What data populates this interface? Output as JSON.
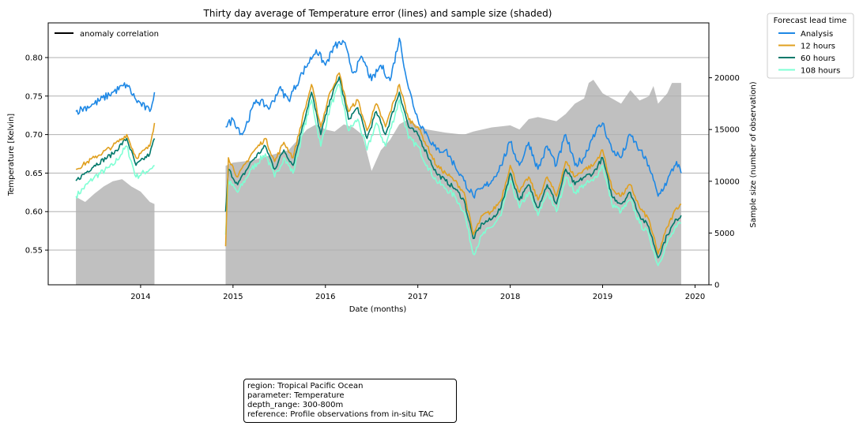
{
  "chart_data": {
    "type": "line",
    "title": "Thirty day average of Temperature error (lines) and sample size (shaded)",
    "xlabel": "Date (months)",
    "ylabel": "Temperature [Kelvin]",
    "y2label": "Sample size (number of observation)",
    "x_ticks": [
      "2014",
      "2015",
      "2016",
      "2017",
      "2018",
      "2019",
      "2020"
    ],
    "y_ticks": [
      "0.55",
      "0.60",
      "0.65",
      "0.70",
      "0.75",
      "0.80"
    ],
    "y2_ticks": [
      "0",
      "5000",
      "10000",
      "15000",
      "20000"
    ],
    "xlim": [
      2013.0,
      2020.15
    ],
    "ylim": [
      0.505,
      0.845
    ],
    "y2lim": [
      0,
      25300
    ],
    "grid": "horizontal",
    "gap": [
      2014.16,
      2014.9
    ],
    "series": [
      {
        "name": "Analysis",
        "color": "#1e88e5",
        "points": [
          [
            2013.3,
            0.73
          ],
          [
            2013.5,
            0.74
          ],
          [
            2013.7,
            0.755
          ],
          [
            2013.85,
            0.765
          ],
          [
            2013.95,
            0.745
          ],
          [
            2014.1,
            0.73
          ],
          [
            2014.15,
            0.755
          ],
          [
            2014.92,
            0.71
          ],
          [
            2015.0,
            0.72
          ],
          [
            2015.1,
            0.7
          ],
          [
            2015.25,
            0.745
          ],
          [
            2015.4,
            0.735
          ],
          [
            2015.5,
            0.76
          ],
          [
            2015.6,
            0.745
          ],
          [
            2015.75,
            0.78
          ],
          [
            2015.9,
            0.81
          ],
          [
            2016.0,
            0.79
          ],
          [
            2016.1,
            0.815
          ],
          [
            2016.2,
            0.82
          ],
          [
            2016.3,
            0.78
          ],
          [
            2016.4,
            0.8
          ],
          [
            2016.5,
            0.77
          ],
          [
            2016.6,
            0.79
          ],
          [
            2016.7,
            0.77
          ],
          [
            2016.8,
            0.825
          ],
          [
            2016.9,
            0.76
          ],
          [
            2017.0,
            0.72
          ],
          [
            2017.1,
            0.7
          ],
          [
            2017.2,
            0.68
          ],
          [
            2017.3,
            0.68
          ],
          [
            2017.4,
            0.66
          ],
          [
            2017.5,
            0.64
          ],
          [
            2017.6,
            0.62
          ],
          [
            2017.7,
            0.63
          ],
          [
            2017.8,
            0.64
          ],
          [
            2017.9,
            0.66
          ],
          [
            2018.0,
            0.69
          ],
          [
            2018.1,
            0.66
          ],
          [
            2018.2,
            0.69
          ],
          [
            2018.3,
            0.655
          ],
          [
            2018.4,
            0.685
          ],
          [
            2018.5,
            0.66
          ],
          [
            2018.6,
            0.7
          ],
          [
            2018.7,
            0.66
          ],
          [
            2018.8,
            0.67
          ],
          [
            2018.9,
            0.7
          ],
          [
            2019.0,
            0.715
          ],
          [
            2019.1,
            0.68
          ],
          [
            2019.2,
            0.67
          ],
          [
            2019.3,
            0.7
          ],
          [
            2019.4,
            0.68
          ],
          [
            2019.5,
            0.66
          ],
          [
            2019.6,
            0.62
          ],
          [
            2019.7,
            0.64
          ],
          [
            2019.8,
            0.665
          ],
          [
            2019.85,
            0.65
          ]
        ]
      },
      {
        "name": "12 hours",
        "color": "#e0a020",
        "points": [
          [
            2013.3,
            0.655
          ],
          [
            2013.5,
            0.67
          ],
          [
            2013.7,
            0.685
          ],
          [
            2013.85,
            0.7
          ],
          [
            2013.95,
            0.67
          ],
          [
            2014.1,
            0.685
          ],
          [
            2014.15,
            0.715
          ],
          [
            2014.92,
            0.555
          ],
          [
            2014.95,
            0.67
          ],
          [
            2015.05,
            0.645
          ],
          [
            2015.2,
            0.675
          ],
          [
            2015.35,
            0.695
          ],
          [
            2015.45,
            0.665
          ],
          [
            2015.55,
            0.69
          ],
          [
            2015.65,
            0.67
          ],
          [
            2015.75,
            0.72
          ],
          [
            2015.85,
            0.765
          ],
          [
            2015.95,
            0.71
          ],
          [
            2016.05,
            0.755
          ],
          [
            2016.15,
            0.78
          ],
          [
            2016.25,
            0.73
          ],
          [
            2016.35,
            0.745
          ],
          [
            2016.45,
            0.705
          ],
          [
            2016.55,
            0.74
          ],
          [
            2016.65,
            0.71
          ],
          [
            2016.8,
            0.765
          ],
          [
            2016.9,
            0.72
          ],
          [
            2017.0,
            0.71
          ],
          [
            2017.1,
            0.685
          ],
          [
            2017.2,
            0.66
          ],
          [
            2017.3,
            0.65
          ],
          [
            2017.4,
            0.64
          ],
          [
            2017.5,
            0.625
          ],
          [
            2017.6,
            0.57
          ],
          [
            2017.7,
            0.595
          ],
          [
            2017.8,
            0.6
          ],
          [
            2017.9,
            0.615
          ],
          [
            2018.0,
            0.66
          ],
          [
            2018.1,
            0.625
          ],
          [
            2018.2,
            0.645
          ],
          [
            2018.3,
            0.615
          ],
          [
            2018.4,
            0.645
          ],
          [
            2018.5,
            0.62
          ],
          [
            2018.6,
            0.665
          ],
          [
            2018.7,
            0.645
          ],
          [
            2018.8,
            0.655
          ],
          [
            2018.9,
            0.66
          ],
          [
            2019.0,
            0.68
          ],
          [
            2019.1,
            0.63
          ],
          [
            2019.2,
            0.62
          ],
          [
            2019.3,
            0.635
          ],
          [
            2019.4,
            0.605
          ],
          [
            2019.5,
            0.59
          ],
          [
            2019.6,
            0.545
          ],
          [
            2019.7,
            0.58
          ],
          [
            2019.8,
            0.605
          ],
          [
            2019.85,
            0.61
          ]
        ]
      },
      {
        "name": "60 hours",
        "color": "#00796b",
        "points": [
          [
            2013.3,
            0.64
          ],
          [
            2013.5,
            0.66
          ],
          [
            2013.7,
            0.675
          ],
          [
            2013.85,
            0.695
          ],
          [
            2013.95,
            0.66
          ],
          [
            2014.1,
            0.675
          ],
          [
            2014.15,
            0.695
          ],
          [
            2014.92,
            0.6
          ],
          [
            2014.95,
            0.655
          ],
          [
            2015.05,
            0.635
          ],
          [
            2015.2,
            0.665
          ],
          [
            2015.35,
            0.685
          ],
          [
            2015.45,
            0.655
          ],
          [
            2015.55,
            0.68
          ],
          [
            2015.65,
            0.66
          ],
          [
            2015.75,
            0.71
          ],
          [
            2015.85,
            0.755
          ],
          [
            2015.95,
            0.7
          ],
          [
            2016.05,
            0.745
          ],
          [
            2016.15,
            0.775
          ],
          [
            2016.25,
            0.72
          ],
          [
            2016.35,
            0.735
          ],
          [
            2016.45,
            0.695
          ],
          [
            2016.55,
            0.73
          ],
          [
            2016.65,
            0.7
          ],
          [
            2016.8,
            0.755
          ],
          [
            2016.9,
            0.71
          ],
          [
            2017.0,
            0.7
          ],
          [
            2017.1,
            0.675
          ],
          [
            2017.2,
            0.65
          ],
          [
            2017.3,
            0.64
          ],
          [
            2017.4,
            0.63
          ],
          [
            2017.5,
            0.615
          ],
          [
            2017.6,
            0.565
          ],
          [
            2017.7,
            0.585
          ],
          [
            2017.8,
            0.59
          ],
          [
            2017.9,
            0.605
          ],
          [
            2018.0,
            0.65
          ],
          [
            2018.1,
            0.615
          ],
          [
            2018.2,
            0.635
          ],
          [
            2018.3,
            0.605
          ],
          [
            2018.4,
            0.635
          ],
          [
            2018.5,
            0.61
          ],
          [
            2018.6,
            0.655
          ],
          [
            2018.7,
            0.635
          ],
          [
            2018.8,
            0.645
          ],
          [
            2018.9,
            0.65
          ],
          [
            2019.0,
            0.67
          ],
          [
            2019.1,
            0.62
          ],
          [
            2019.2,
            0.61
          ],
          [
            2019.3,
            0.625
          ],
          [
            2019.4,
            0.595
          ],
          [
            2019.5,
            0.58
          ],
          [
            2019.6,
            0.54
          ],
          [
            2019.7,
            0.57
          ],
          [
            2019.8,
            0.59
          ],
          [
            2019.85,
            0.595
          ]
        ]
      },
      {
        "name": "108 hours",
        "color": "#7fffd4",
        "points": [
          [
            2013.3,
            0.62
          ],
          [
            2013.5,
            0.645
          ],
          [
            2013.7,
            0.66
          ],
          [
            2013.85,
            0.685
          ],
          [
            2013.95,
            0.645
          ],
          [
            2014.1,
            0.655
          ],
          [
            2014.15,
            0.66
          ],
          [
            2014.92,
            0.57
          ],
          [
            2014.95,
            0.64
          ],
          [
            2015.05,
            0.625
          ],
          [
            2015.2,
            0.655
          ],
          [
            2015.35,
            0.675
          ],
          [
            2015.45,
            0.645
          ],
          [
            2015.55,
            0.67
          ],
          [
            2015.65,
            0.65
          ],
          [
            2015.75,
            0.7
          ],
          [
            2015.85,
            0.745
          ],
          [
            2015.95,
            0.685
          ],
          [
            2016.05,
            0.735
          ],
          [
            2016.15,
            0.765
          ],
          [
            2016.25,
            0.705
          ],
          [
            2016.35,
            0.72
          ],
          [
            2016.45,
            0.68
          ],
          [
            2016.55,
            0.715
          ],
          [
            2016.65,
            0.685
          ],
          [
            2016.8,
            0.745
          ],
          [
            2016.9,
            0.695
          ],
          [
            2017.0,
            0.685
          ],
          [
            2017.1,
            0.66
          ],
          [
            2017.2,
            0.64
          ],
          [
            2017.3,
            0.63
          ],
          [
            2017.4,
            0.62
          ],
          [
            2017.5,
            0.6
          ],
          [
            2017.6,
            0.545
          ],
          [
            2017.7,
            0.57
          ],
          [
            2017.8,
            0.58
          ],
          [
            2017.9,
            0.595
          ],
          [
            2018.0,
            0.64
          ],
          [
            2018.1,
            0.605
          ],
          [
            2018.2,
            0.625
          ],
          [
            2018.3,
            0.595
          ],
          [
            2018.4,
            0.625
          ],
          [
            2018.5,
            0.6
          ],
          [
            2018.6,
            0.645
          ],
          [
            2018.7,
            0.625
          ],
          [
            2018.8,
            0.635
          ],
          [
            2018.9,
            0.64
          ],
          [
            2019.0,
            0.66
          ],
          [
            2019.1,
            0.61
          ],
          [
            2019.2,
            0.6
          ],
          [
            2019.3,
            0.615
          ],
          [
            2019.4,
            0.585
          ],
          [
            2019.5,
            0.57
          ],
          [
            2019.6,
            0.53
          ],
          [
            2019.7,
            0.56
          ],
          [
            2019.8,
            0.58
          ],
          [
            2019.85,
            0.585
          ]
        ]
      }
    ],
    "sample_size": {
      "color": "#c0c0c0",
      "points": [
        [
          2013.3,
          8500
        ],
        [
          2013.4,
          8000
        ],
        [
          2013.5,
          8800
        ],
        [
          2013.6,
          9500
        ],
        [
          2013.7,
          10000
        ],
        [
          2013.8,
          10200
        ],
        [
          2013.9,
          9500
        ],
        [
          2014.0,
          9000
        ],
        [
          2014.1,
          8000
        ],
        [
          2014.15,
          7800
        ],
        [
          2014.92,
          11500
        ],
        [
          2015.0,
          11800
        ],
        [
          2015.2,
          12000
        ],
        [
          2015.4,
          12500
        ],
        [
          2015.6,
          13000
        ],
        [
          2015.8,
          15000
        ],
        [
          2015.9,
          15500
        ],
        [
          2016.0,
          15000
        ],
        [
          2016.1,
          14800
        ],
        [
          2016.2,
          15500
        ],
        [
          2016.3,
          15200
        ],
        [
          2016.4,
          14500
        ],
        [
          2016.5,
          11000
        ],
        [
          2016.6,
          13000
        ],
        [
          2016.7,
          14000
        ],
        [
          2016.8,
          15500
        ],
        [
          2016.9,
          16000
        ],
        [
          2017.0,
          15300
        ],
        [
          2017.1,
          15000
        ],
        [
          2017.3,
          14700
        ],
        [
          2017.5,
          14500
        ],
        [
          2017.6,
          14800
        ],
        [
          2017.8,
          15200
        ],
        [
          2018.0,
          15400
        ],
        [
          2018.1,
          15000
        ],
        [
          2018.2,
          16000
        ],
        [
          2018.3,
          16200
        ],
        [
          2018.5,
          15800
        ],
        [
          2018.6,
          16500
        ],
        [
          2018.7,
          17500
        ],
        [
          2018.8,
          18000
        ],
        [
          2018.85,
          19500
        ],
        [
          2018.9,
          19800
        ],
        [
          2019.0,
          18500
        ],
        [
          2019.1,
          18000
        ],
        [
          2019.2,
          17500
        ],
        [
          2019.3,
          18800
        ],
        [
          2019.4,
          17800
        ],
        [
          2019.5,
          18200
        ],
        [
          2019.55,
          19200
        ],
        [
          2019.6,
          17500
        ],
        [
          2019.7,
          18500
        ],
        [
          2019.75,
          19500
        ],
        [
          2019.85,
          19500
        ]
      ]
    },
    "legend": {
      "title": "Forecast lead time",
      "placement": "outside-top-right",
      "entries": [
        "Analysis",
        "12 hours",
        "60 hours",
        "108 hours"
      ]
    },
    "inner_legend": {
      "placement": "top-left",
      "label": "anomaly correlation",
      "color": "#000000"
    }
  },
  "info_box": {
    "lines": [
      "region: Tropical Pacific Ocean",
      "parameter: Temperature",
      "depth_range: 300-800m",
      "reference: Profile observations from in-situ TAC"
    ]
  }
}
